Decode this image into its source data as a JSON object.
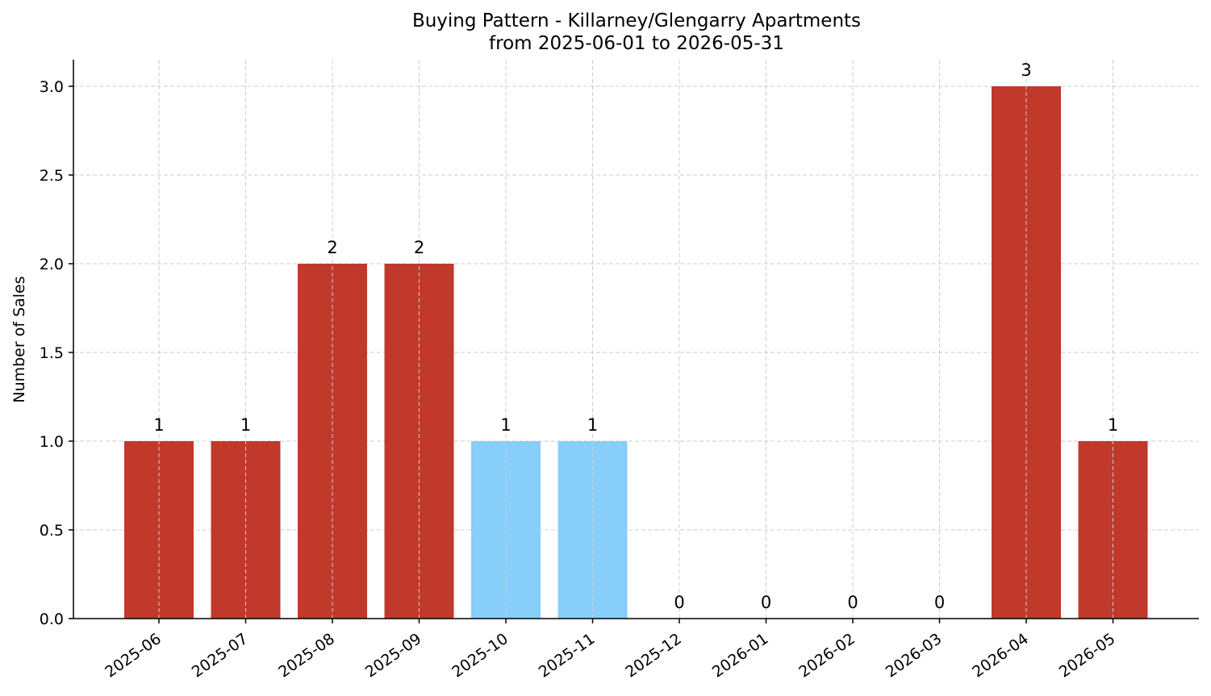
{
  "chart_data": {
    "type": "bar",
    "title": "Buying Pattern - Killarney/Glengarry Apartments",
    "subtitle": "from 2025-06-01 to 2026-05-31",
    "xlabel": "",
    "ylabel": "Number of Sales",
    "categories": [
      "2025-06",
      "2025-07",
      "2025-08",
      "2025-09",
      "2025-10",
      "2025-11",
      "2025-12",
      "2026-01",
      "2026-02",
      "2026-03",
      "2026-04",
      "2026-05"
    ],
    "values": [
      1,
      1,
      2,
      2,
      1,
      1,
      0,
      0,
      0,
      0,
      3,
      1
    ],
    "bar_colors": [
      "#c0392b",
      "#c0392b",
      "#c0392b",
      "#c0392b",
      "#87cefa",
      "#87cefa",
      "#c0392b",
      "#c0392b",
      "#c0392b",
      "#c0392b",
      "#c0392b",
      "#c0392b"
    ],
    "data_labels": [
      "1",
      "1",
      "2",
      "2",
      "1",
      "1",
      "0",
      "0",
      "0",
      "0",
      "3",
      "1"
    ],
    "ylim": [
      0,
      3.15
    ],
    "yticks": [
      0.0,
      0.5,
      1.0,
      1.5,
      2.0,
      2.5,
      3.0
    ],
    "ytick_labels": [
      "0.0",
      "0.5",
      "1.0",
      "1.5",
      "2.0",
      "2.5",
      "3.0"
    ],
    "grid": true,
    "legend": "none"
  }
}
